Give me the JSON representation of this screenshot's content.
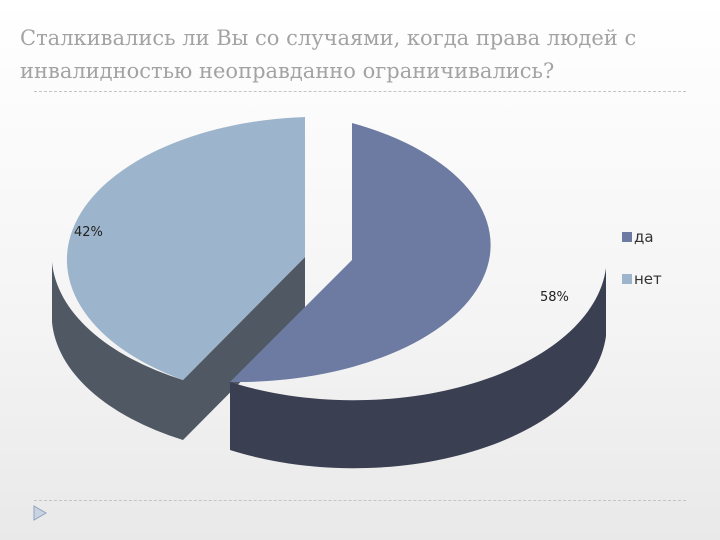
{
  "slide": {
    "title": "Сталкивались ли Вы со случаями, когда права людей с инвалидностью неоправданно ограничивались?"
  },
  "chart_data": {
    "type": "pie",
    "style": "3d-exploded",
    "categories": [
      "да",
      "нет"
    ],
    "values": [
      58,
      42
    ],
    "data_labels": [
      "58%",
      "42%"
    ],
    "colors": [
      "#6d7aa1",
      "#9db5cc"
    ],
    "legend": "right"
  }
}
